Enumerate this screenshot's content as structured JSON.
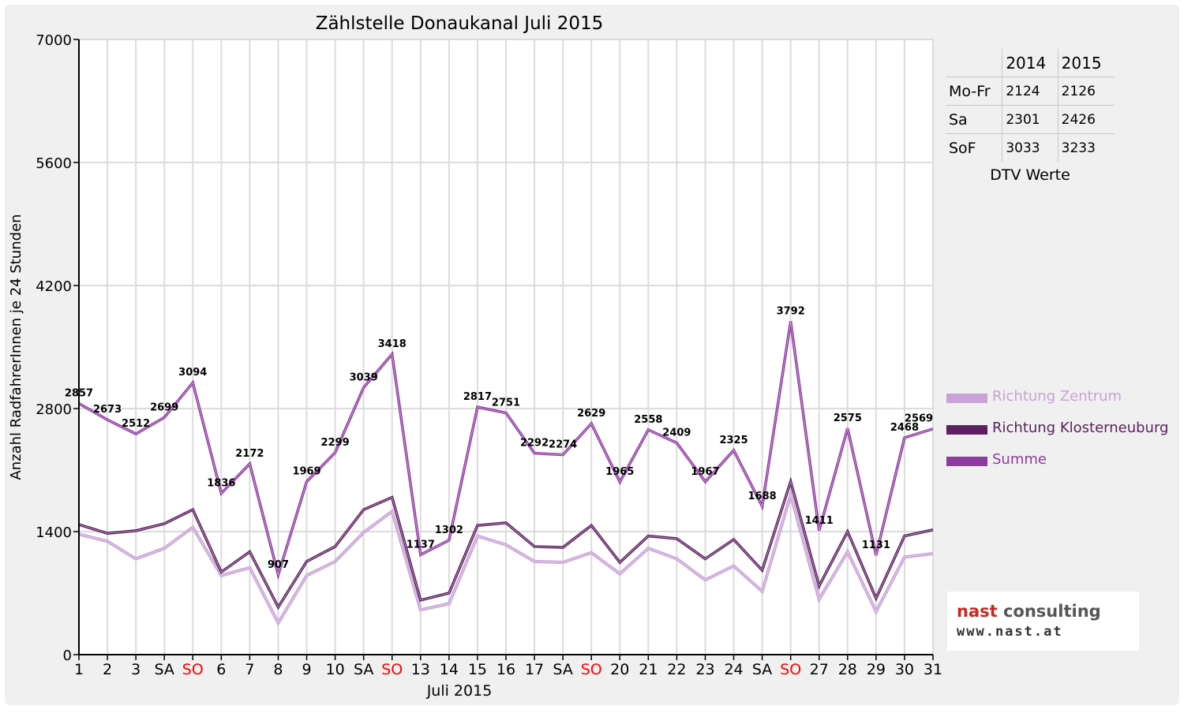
{
  "chart_data": {
    "type": "line",
    "title": "Zählstelle Donaukanal Juli 2015",
    "xlabel": "Juli 2015",
    "ylabel": "Anzahl RadfahrerInnen je 24 Stunden",
    "ylim": [
      0,
      7000
    ],
    "yticks": [
      "0",
      "1400",
      "2800",
      "4200",
      "5600",
      "7000"
    ],
    "grid": true,
    "legend_position": "right",
    "categories": [
      "1",
      "2",
      "3",
      "SA",
      "SO",
      "6",
      "7",
      "8",
      "9",
      "10",
      "SA",
      "SO",
      "13",
      "14",
      "15",
      "16",
      "17",
      "SA",
      "SO",
      "20",
      "21",
      "22",
      "23",
      "24",
      "SA",
      "SO",
      "27",
      "28",
      "29",
      "30",
      "31"
    ],
    "weekend_label_color": "#ff0000",
    "series": [
      {
        "name": "Richtung Zentrum",
        "color": "#c8a2d6",
        "values": [
          1370,
          1290,
          1090,
          1210,
          1450,
          900,
          990,
          360,
          900,
          1060,
          1390,
          1630,
          510,
          580,
          1350,
          1250,
          1060,
          1050,
          1160,
          920,
          1210,
          1090,
          850,
          1010,
          720,
          1820,
          630,
          1170,
          490,
          1110,
          1150
        ]
      },
      {
        "name": "Richtung Klosterneuburg",
        "color": "#5c2060",
        "values": [
          1480,
          1380,
          1410,
          1490,
          1650,
          940,
          1170,
          540,
          1060,
          1230,
          1650,
          1790,
          620,
          700,
          1470,
          1500,
          1230,
          1220,
          1470,
          1050,
          1350,
          1320,
          1090,
          1310,
          960,
          1970,
          780,
          1400,
          640,
          1350,
          1420
        ]
      },
      {
        "name": "Summe",
        "color": "#8e3aa0",
        "values": [
          2857,
          2673,
          2512,
          2699,
          3094,
          1836,
          2172,
          907,
          1969,
          2299,
          3039,
          3418,
          1137,
          1302,
          2817,
          2751,
          2292,
          2274,
          2629,
          1965,
          2558,
          2409,
          1967,
          2325,
          1688,
          3792,
          1411,
          2575,
          1131,
          2468,
          2569
        ]
      }
    ],
    "data_labels": [
      "2857",
      "2673",
      "2512",
      "2699",
      "3094",
      "1836",
      "2172",
      "907",
      "1969",
      "2299",
      "3039",
      "3418",
      "1137",
      "1302",
      "2817",
      "2751",
      "2292",
      "2274",
      "2629",
      "1965",
      "2558",
      "2409",
      "1967",
      "2325",
      "1688",
      "3792",
      "1411",
      "2575",
      "1131",
      "2468",
      "2569"
    ]
  },
  "dtv_table": {
    "header": [
      "",
      "2014",
      "2015"
    ],
    "rows": [
      {
        "label": "Mo-Fr",
        "y2014": "2124",
        "y2015": "2126"
      },
      {
        "label": "Sa",
        "y2014": "2301",
        "y2015": "2426"
      },
      {
        "label": "SoF",
        "y2014": "3033",
        "y2015": "3233"
      }
    ],
    "caption": "DTV Werte"
  },
  "logo": {
    "line1_part1": "nast",
    "line1_part2": "consulting",
    "line2": "www.nast.at"
  }
}
